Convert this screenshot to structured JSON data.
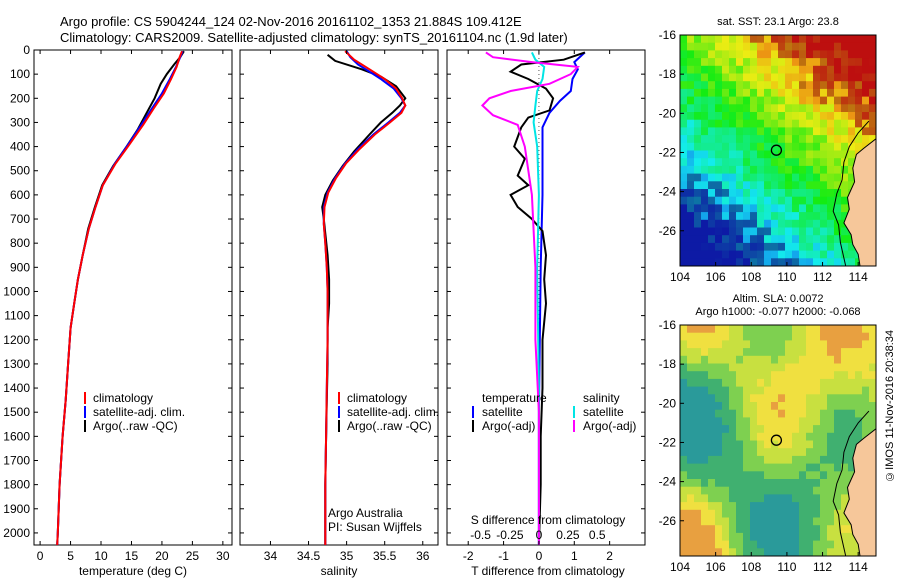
{
  "header": {
    "line1": "Argo profile: CS 5904244_124 02-Nov-2016 20161102_1353 21.884S 109.412E",
    "line2": "Climatology: CARS2009. Satellite-adjusted climatology: synTS_20161104.nc (1.9d later)"
  },
  "colors": {
    "climatology": "#ff0000",
    "satellite": "#0000ff",
    "argo": "#000000",
    "sat_s": "#00e5e5",
    "argo_s": "#ff00ff",
    "land": "#f6c79a"
  },
  "chart_data": [
    {
      "type": "line",
      "name": "temperature-profile",
      "xlabel": "temperature (deg C)",
      "xlim": [
        -1,
        31.5
      ],
      "ylim": [
        0,
        2050
      ],
      "xticks": [
        "0",
        "5",
        "10",
        "15",
        "20",
        "25",
        "30"
      ],
      "yticks": [
        "0",
        "100",
        "200",
        "300",
        "400",
        "500",
        "600",
        "700",
        "800",
        "900",
        "1000",
        "1100",
        "1200",
        "1300",
        "1400",
        "1500",
        "1600",
        "1700",
        "1800",
        "1900",
        "2000"
      ],
      "legend": [
        "climatology",
        "satellite-adj. clim.",
        "Argo(..raw -QC)"
      ],
      "series": [
        {
          "name": "Argo",
          "color": "#000000",
          "points": [
            [
              23.6,
              5
            ],
            [
              23.0,
              30
            ],
            [
              22.0,
              60
            ],
            [
              20.8,
              100
            ],
            [
              19.8,
              140
            ],
            [
              18.8,
              200
            ],
            [
              17.5,
              260
            ],
            [
              16.0,
              330
            ],
            [
              14.2,
              400
            ],
            [
              12.0,
              480
            ],
            [
              10.2,
              560
            ],
            [
              9.0,
              650
            ],
            [
              7.9,
              740
            ],
            [
              7.0,
              850
            ],
            [
              6.2,
              950
            ],
            [
              5.6,
              1050
            ],
            [
              5.0,
              1150
            ],
            [
              4.6,
              1300
            ],
            [
              4.2,
              1450
            ],
            [
              3.7,
              1600
            ],
            [
              3.2,
              1800
            ],
            [
              2.9,
              2000
            ],
            [
              2.8,
              2050
            ]
          ]
        },
        {
          "name": "satellite",
          "color": "#0000ff",
          "points": [
            [
              23.4,
              5
            ],
            [
              23.0,
              30
            ],
            [
              22.3,
              70
            ],
            [
              21.3,
              120
            ],
            [
              20.0,
              180
            ],
            [
              18.4,
              240
            ],
            [
              16.6,
              310
            ],
            [
              14.5,
              390
            ],
            [
              12.3,
              470
            ],
            [
              10.3,
              560
            ],
            [
              9.1,
              650
            ],
            [
              8.0,
              740
            ],
            [
              7.0,
              850
            ],
            [
              6.2,
              950
            ],
            [
              5.6,
              1050
            ],
            [
              5.0,
              1150
            ],
            [
              4.6,
              1300
            ],
            [
              4.2,
              1450
            ],
            [
              3.7,
              1600
            ],
            [
              3.2,
              1800
            ],
            [
              2.9,
              2000
            ],
            [
              2.8,
              2050
            ]
          ]
        },
        {
          "name": "climatology",
          "color": "#ff0000",
          "points": [
            [
              23.3,
              5
            ],
            [
              22.9,
              30
            ],
            [
              22.4,
              70
            ],
            [
              21.5,
              120
            ],
            [
              20.3,
              180
            ],
            [
              18.7,
              240
            ],
            [
              16.9,
              310
            ],
            [
              14.7,
              390
            ],
            [
              12.4,
              470
            ],
            [
              10.3,
              560
            ],
            [
              9.1,
              650
            ],
            [
              8.0,
              740
            ],
            [
              7.0,
              850
            ],
            [
              6.2,
              950
            ],
            [
              5.6,
              1050
            ],
            [
              5.0,
              1150
            ],
            [
              4.6,
              1300
            ],
            [
              4.2,
              1450
            ],
            [
              3.7,
              1600
            ],
            [
              3.2,
              1800
            ],
            [
              2.9,
              2000
            ],
            [
              2.8,
              2050
            ]
          ]
        }
      ]
    },
    {
      "type": "line",
      "name": "salinity-profile",
      "xlabel": "salinity",
      "xlim": [
        33.6,
        36.2
      ],
      "ylim": [
        0,
        2050
      ],
      "xticks": [
        "34",
        "34.5",
        "35",
        "35.5",
        "36"
      ],
      "legend": [
        "climatology",
        "satellite-adj. clim.",
        "Argo(..raw -QC)"
      ],
      "annotation": [
        "Argo Australia",
        "PI: Susan Wijffels"
      ],
      "series": [
        {
          "name": "Argo",
          "color": "#000000",
          "points": [
            [
              34.75,
              20
            ],
            [
              34.85,
              45
            ],
            [
              35.2,
              80
            ],
            [
              35.45,
              110
            ],
            [
              35.65,
              150
            ],
            [
              35.77,
              200
            ],
            [
              35.7,
              230
            ],
            [
              35.6,
              260
            ],
            [
              35.45,
              300
            ],
            [
              35.3,
              350
            ],
            [
              35.1,
              420
            ],
            [
              34.95,
              480
            ],
            [
              34.82,
              540
            ],
            [
              34.72,
              600
            ],
            [
              34.68,
              650
            ],
            [
              34.7,
              700
            ],
            [
              34.72,
              760
            ],
            [
              34.75,
              850
            ],
            [
              34.77,
              950
            ],
            [
              34.77,
              1050
            ],
            [
              34.75,
              1150
            ],
            [
              34.75,
              1300
            ],
            [
              34.74,
              1450
            ],
            [
              34.73,
              1600
            ],
            [
              34.72,
              1800
            ],
            [
              34.72,
              2000
            ],
            [
              34.72,
              2050
            ]
          ]
        },
        {
          "name": "satellite",
          "color": "#0000ff",
          "points": [
            [
              35.0,
              5
            ],
            [
              35.05,
              30
            ],
            [
              35.15,
              60
            ],
            [
              35.3,
              90
            ],
            [
              35.45,
              120
            ],
            [
              35.62,
              160
            ],
            [
              35.72,
              200
            ],
            [
              35.77,
              230
            ],
            [
              35.7,
              260
            ],
            [
              35.55,
              300
            ],
            [
              35.35,
              350
            ],
            [
              35.15,
              410
            ],
            [
              34.98,
              470
            ],
            [
              34.85,
              530
            ],
            [
              34.75,
              590
            ],
            [
              34.7,
              650
            ],
            [
              34.7,
              720
            ],
            [
              34.72,
              800
            ],
            [
              34.74,
              900
            ],
            [
              34.75,
              1000
            ],
            [
              34.75,
              1100
            ],
            [
              34.75,
              1200
            ],
            [
              34.74,
              1400
            ],
            [
              34.73,
              1600
            ],
            [
              34.72,
              1800
            ],
            [
              34.72,
              2000
            ],
            [
              34.72,
              2050
            ]
          ]
        },
        {
          "name": "climatology",
          "color": "#ff0000",
          "points": [
            [
              34.98,
              5
            ],
            [
              35.1,
              40
            ],
            [
              35.3,
              80
            ],
            [
              35.5,
              120
            ],
            [
              35.65,
              160
            ],
            [
              35.73,
              200
            ],
            [
              35.77,
              230
            ],
            [
              35.72,
              260
            ],
            [
              35.57,
              300
            ],
            [
              35.37,
              350
            ],
            [
              35.17,
              410
            ],
            [
              34.99,
              470
            ],
            [
              34.86,
              530
            ],
            [
              34.76,
              590
            ],
            [
              34.71,
              650
            ],
            [
              34.7,
              720
            ],
            [
              34.72,
              800
            ],
            [
              34.74,
              900
            ],
            [
              34.75,
              1000
            ],
            [
              34.75,
              1100
            ],
            [
              34.75,
              1200
            ],
            [
              34.74,
              1400
            ],
            [
              34.73,
              1600
            ],
            [
              34.72,
              1800
            ],
            [
              34.72,
              2000
            ],
            [
              34.72,
              2050
            ]
          ]
        }
      ]
    },
    {
      "type": "line",
      "name": "difference-profile",
      "xlabel": "T difference from climatology",
      "xlabel_top": "S difference from climatology",
      "xlim": [
        -2.6,
        3.0
      ],
      "ylim": [
        0,
        2050
      ],
      "xticks": [
        "-2",
        "-1",
        "0",
        "1",
        "2"
      ],
      "s_ticks": [
        "-0.5",
        "-0.25",
        "0",
        "0.25",
        "0.5"
      ],
      "legend_t": [
        "temperature",
        "satellite",
        "Argo(-adj)"
      ],
      "legend_s": [
        "salinity",
        "satellite",
        "Argo(-adj)"
      ],
      "series": [
        {
          "name": "T satellite",
          "color": "#0000ff",
          "points": [
            [
              1.3,
              10
            ],
            [
              1.0,
              50
            ],
            [
              1.1,
              80
            ],
            [
              0.95,
              120
            ],
            [
              0.9,
              170
            ],
            [
              0.6,
              210
            ],
            [
              0.3,
              260
            ],
            [
              0.1,
              320
            ],
            [
              0.1,
              400
            ],
            [
              0.1,
              600
            ],
            [
              0.05,
              900
            ],
            [
              0,
              1500
            ],
            [
              0,
              2050
            ]
          ]
        },
        {
          "name": "T Argo",
          "color": "#000000",
          "points": [
            [
              1.3,
              10
            ],
            [
              0.7,
              40
            ],
            [
              -0.5,
              60
            ],
            [
              -0.8,
              90
            ],
            [
              -0.3,
              120
            ],
            [
              0.2,
              160
            ],
            [
              0.4,
              200
            ],
            [
              0.3,
              250
            ],
            [
              -0.3,
              280
            ],
            [
              -0.5,
              320
            ],
            [
              -0.7,
              400
            ],
            [
              -0.4,
              450
            ],
            [
              -0.6,
              520
            ],
            [
              -0.3,
              560
            ],
            [
              -0.8,
              600
            ],
            [
              -0.6,
              650
            ],
            [
              -0.2,
              700
            ],
            [
              0.1,
              750
            ],
            [
              0.2,
              850
            ],
            [
              0.15,
              950
            ],
            [
              0.2,
              1050
            ],
            [
              0.1,
              1200
            ],
            [
              0.1,
              1400
            ],
            [
              0.05,
              1600
            ],
            [
              0.05,
              1800
            ],
            [
              0,
              2050
            ]
          ]
        },
        {
          "name": "S satellite",
          "color": "#00e5e5",
          "points": [
            [
              -0.2,
              10
            ],
            [
              -0.1,
              40
            ],
            [
              0.15,
              70
            ],
            [
              0.1,
              120
            ],
            [
              -0.05,
              170
            ],
            [
              -0.1,
              230
            ],
            [
              -0.15,
              300
            ],
            [
              -0.05,
              400
            ],
            [
              0,
              600
            ],
            [
              -0.05,
              900
            ],
            [
              0,
              1400
            ],
            [
              0,
              2050
            ]
          ]
        },
        {
          "name": "S Argo",
          "color": "#ff00ff",
          "points": [
            [
              -1.5,
              10
            ],
            [
              -1.3,
              30
            ],
            [
              -0.2,
              50
            ],
            [
              1.1,
              70
            ],
            [
              0.9,
              100
            ],
            [
              0.3,
              140
            ],
            [
              -0.8,
              170
            ],
            [
              -1.4,
              200
            ],
            [
              -1.6,
              230
            ],
            [
              -1.3,
              270
            ],
            [
              -0.6,
              310
            ],
            [
              -0.4,
              400
            ],
            [
              -0.2,
              600
            ],
            [
              -0.1,
              900
            ],
            [
              -0.1,
              1200
            ],
            [
              0,
              1500
            ],
            [
              0,
              2050
            ]
          ]
        }
      ]
    },
    {
      "type": "heatmap",
      "name": "sst-map",
      "title": "sat. SST: 23.1 Argo: 23.8",
      "xlim": [
        104,
        115
      ],
      "ylim": [
        -27.8,
        -16
      ],
      "xticks": [
        "104",
        "106",
        "108",
        "110",
        "112",
        "114"
      ],
      "yticks": [
        "-16",
        "-18",
        "-20",
        "-22",
        "-24",
        "-26"
      ],
      "marker": [
        109.412,
        -21.884
      ]
    },
    {
      "type": "heatmap",
      "name": "sla-map",
      "title": "Altim. SLA: 0.0072",
      "subtitle": "Argo h1000: -0.077 h2000: -0.068",
      "xlim": [
        104,
        115
      ],
      "ylim": [
        -27.8,
        -16
      ],
      "xticks": [
        "104",
        "106",
        "108",
        "110",
        "112",
        "114"
      ],
      "yticks": [
        "-16",
        "-18",
        "-20",
        "-22",
        "-24",
        "-26"
      ],
      "marker": [
        109.412,
        -21.884
      ]
    }
  ],
  "footer": {
    "credit": "©IMOS 11-Nov-2016 20:38:34"
  }
}
